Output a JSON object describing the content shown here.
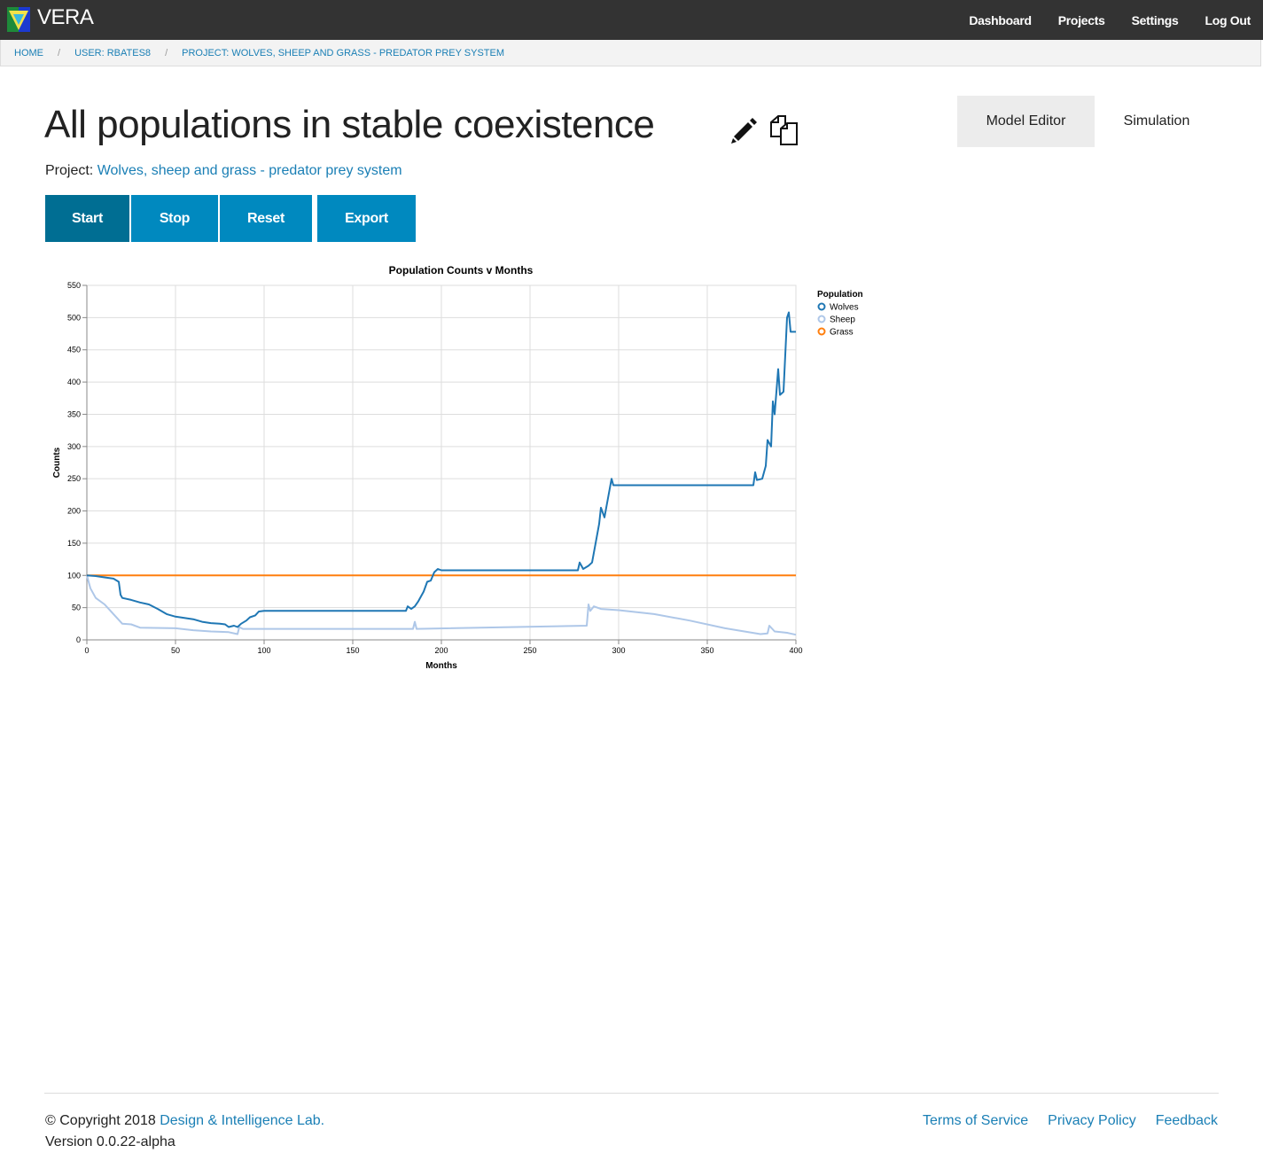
{
  "app": {
    "brand": "VERA"
  },
  "nav": {
    "items": [
      "Dashboard",
      "Projects",
      "Settings",
      "Log Out"
    ]
  },
  "breadcrumb": [
    "HOME",
    "USER: RBATES8",
    "PROJECT: WOLVES, SHEEP AND GRASS - PREDATOR PREY SYSTEM"
  ],
  "page": {
    "title": "All populations in stable coexistence",
    "project_label": "Project:",
    "project_name": "Wolves, sheep and grass - predator prey system",
    "edit_icon": "pencil-icon",
    "copy_icon": "copy-icon"
  },
  "tabs": [
    {
      "label": "Model Editor",
      "active": true
    },
    {
      "label": "Simulation",
      "active": false
    }
  ],
  "buttons": {
    "start": "Start",
    "stop": "Stop",
    "reset": "Reset",
    "export": "Export"
  },
  "colors": {
    "wolves": "#1f77b4",
    "sheep": "#aec7e8",
    "grass": "#ff7f0e",
    "button": "#0089bf",
    "button_active": "#006e93",
    "link": "#1a7fb5"
  },
  "chart_data": {
    "type": "line",
    "title": "Population Counts v Months",
    "xlabel": "Months",
    "ylabel": "Counts",
    "xlim": [
      0,
      400
    ],
    "ylim": [
      0,
      550
    ],
    "xticks": [
      0,
      50,
      100,
      150,
      200,
      250,
      300,
      350,
      400
    ],
    "yticks": [
      0,
      50,
      100,
      150,
      200,
      250,
      300,
      350,
      400,
      450,
      500,
      550
    ],
    "grid": true,
    "legend_title": "Population",
    "legend_position": "right",
    "series": [
      {
        "name": "Wolves",
        "color": "#1f77b4",
        "points": [
          [
            0,
            100
          ],
          [
            5,
            99
          ],
          [
            10,
            97
          ],
          [
            15,
            95
          ],
          [
            18,
            90
          ],
          [
            19,
            70
          ],
          [
            20,
            65
          ],
          [
            25,
            62
          ],
          [
            30,
            58
          ],
          [
            35,
            55
          ],
          [
            40,
            48
          ],
          [
            45,
            40
          ],
          [
            50,
            36
          ],
          [
            55,
            34
          ],
          [
            60,
            32
          ],
          [
            65,
            28
          ],
          [
            70,
            26
          ],
          [
            75,
            25
          ],
          [
            78,
            24
          ],
          [
            80,
            20
          ],
          [
            83,
            22
          ],
          [
            85,
            20
          ],
          [
            87,
            25
          ],
          [
            90,
            30
          ],
          [
            92,
            35
          ],
          [
            95,
            38
          ],
          [
            97,
            44
          ],
          [
            100,
            45
          ],
          [
            180,
            45
          ],
          [
            181,
            52
          ],
          [
            183,
            48
          ],
          [
            185,
            52
          ],
          [
            187,
            60
          ],
          [
            190,
            75
          ],
          [
            192,
            90
          ],
          [
            194,
            92
          ],
          [
            196,
            105
          ],
          [
            198,
            110
          ],
          [
            200,
            108
          ],
          [
            277,
            108
          ],
          [
            278,
            120
          ],
          [
            280,
            110
          ],
          [
            283,
            115
          ],
          [
            285,
            120
          ],
          [
            287,
            150
          ],
          [
            289,
            180
          ],
          [
            290,
            205
          ],
          [
            292,
            190
          ],
          [
            294,
            220
          ],
          [
            296,
            250
          ],
          [
            297,
            240
          ],
          [
            300,
            240
          ],
          [
            376,
            240
          ],
          [
            377,
            260
          ],
          [
            378,
            248
          ],
          [
            381,
            250
          ],
          [
            383,
            270
          ],
          [
            384,
            310
          ],
          [
            386,
            300
          ],
          [
            387,
            370
          ],
          [
            388,
            350
          ],
          [
            390,
            420
          ],
          [
            391,
            380
          ],
          [
            393,
            385
          ],
          [
            395,
            500
          ],
          [
            396,
            508
          ],
          [
            397,
            478
          ],
          [
            400,
            478
          ]
        ]
      },
      {
        "name": "Sheep",
        "color": "#aec7e8",
        "points": [
          [
            0,
            100
          ],
          [
            2,
            80
          ],
          [
            5,
            65
          ],
          [
            10,
            55
          ],
          [
            15,
            40
          ],
          [
            20,
            25
          ],
          [
            25,
            24
          ],
          [
            30,
            19
          ],
          [
            50,
            18
          ],
          [
            60,
            15
          ],
          [
            70,
            13
          ],
          [
            80,
            12
          ],
          [
            85,
            9
          ],
          [
            86,
            20
          ],
          [
            88,
            17
          ],
          [
            184,
            17
          ],
          [
            185,
            28
          ],
          [
            186,
            17
          ],
          [
            282,
            22
          ],
          [
            283,
            55
          ],
          [
            284,
            45
          ],
          [
            286,
            52
          ],
          [
            290,
            48
          ],
          [
            300,
            46
          ],
          [
            320,
            40
          ],
          [
            340,
            30
          ],
          [
            360,
            18
          ],
          [
            380,
            9
          ],
          [
            384,
            10
          ],
          [
            385,
            22
          ],
          [
            388,
            13
          ],
          [
            395,
            11
          ],
          [
            400,
            8
          ]
        ]
      },
      {
        "name": "Grass",
        "color": "#ff7f0e",
        "points": [
          [
            0,
            100
          ],
          [
            400,
            100
          ]
        ]
      }
    ]
  },
  "footer": {
    "copyright_prefix": "© Copyright 2018",
    "org": "Design & Intelligence Lab.",
    "version": "Version 0.0.22-alpha",
    "links": [
      "Terms of Service",
      "Privacy Policy",
      "Feedback"
    ]
  }
}
